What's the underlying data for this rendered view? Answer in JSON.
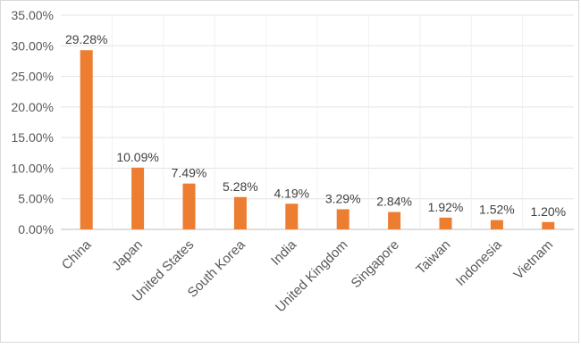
{
  "chart_data": {
    "type": "bar",
    "title": "",
    "xlabel": "",
    "ylabel": "",
    "ylim": [
      0,
      35
    ],
    "y_ticks": [
      0,
      5,
      10,
      15,
      20,
      25,
      30,
      35
    ],
    "y_tick_labels": [
      "0.00%",
      "5.00%",
      "10.00%",
      "15.00%",
      "20.00%",
      "25.00%",
      "30.00%",
      "35.00%"
    ],
    "grid": "horizontal",
    "legend": "none",
    "categories": [
      "China",
      "Japan",
      "United States",
      "South Korea",
      "India",
      "United Kingdom",
      "Singapore",
      "Taiwan",
      "Indonesia",
      "Vietnam"
    ],
    "values": [
      29.28,
      10.09,
      7.49,
      5.28,
      4.19,
      3.29,
      2.84,
      1.92,
      1.52,
      1.2
    ],
    "value_labels": [
      "29.28%",
      "10.09%",
      "7.49%",
      "5.28%",
      "4.19%",
      "3.29%",
      "2.84%",
      "1.92%",
      "1.52%",
      "1.20%"
    ],
    "colors": {
      "bar": "#ed7d31",
      "grid": "#e3e3e3",
      "axis": "#bfbfbf"
    }
  }
}
